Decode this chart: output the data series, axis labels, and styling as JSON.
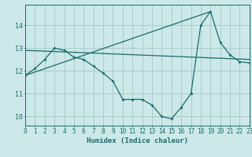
{
  "xlabel": "Humidex (Indice chaleur)",
  "background_color": "#cce8e8",
  "grid_color": "#aacccc",
  "line_color": "#1a6b6b",
  "x": [
    0,
    1,
    2,
    3,
    4,
    5,
    6,
    7,
    8,
    9,
    10,
    11,
    12,
    13,
    14,
    15,
    16,
    17,
    18,
    19,
    20,
    21,
    22,
    23
  ],
  "line1": [
    11.8,
    12.1,
    12.5,
    13.0,
    12.9,
    12.6,
    12.5,
    12.2,
    11.9,
    11.55,
    10.75,
    10.75,
    10.75,
    10.5,
    10.0,
    9.9,
    10.4,
    11.0,
    14.0,
    14.6,
    13.25,
    12.7,
    12.4,
    12.35
  ],
  "line2_x": [
    0,
    23
  ],
  "line2_y": [
    12.9,
    12.5
  ],
  "line3_x": [
    0,
    19
  ],
  "line3_y": [
    11.8,
    14.6
  ],
  "ylim": [
    9.6,
    14.9
  ],
  "xlim": [
    0,
    23
  ],
  "yticks": [
    10,
    11,
    12,
    13,
    14
  ],
  "xticks": [
    0,
    1,
    2,
    3,
    4,
    5,
    6,
    7,
    8,
    9,
    10,
    11,
    12,
    13,
    14,
    15,
    16,
    17,
    18,
    19,
    20,
    21,
    22,
    23
  ],
  "xlabel_fontsize": 6.5,
  "tick_fontsize": 5.5
}
